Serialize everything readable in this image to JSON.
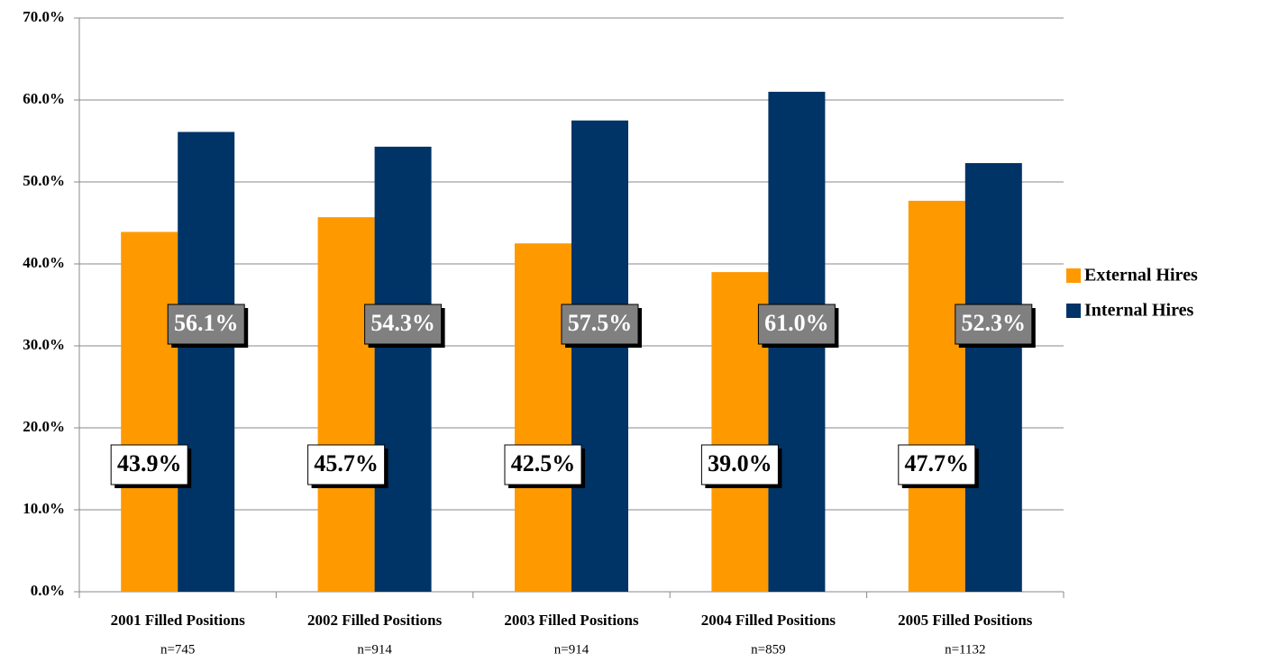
{
  "chart_data": {
    "type": "bar",
    "categories": [
      "2001 Filled Positions",
      "2002 Filled Positions",
      "2003 Filled Positions",
      "2004 Filled Positions",
      "2005 Filled Positions"
    ],
    "sample_sizes": [
      "n=745",
      "n=914",
      "n=914",
      "n=859",
      "n=1132"
    ],
    "series": [
      {
        "name": "External Hires",
        "color": "#FF9900",
        "values": [
          43.9,
          45.7,
          42.5,
          39.0,
          47.7
        ],
        "value_labels": [
          "43.9%",
          "45.7%",
          "42.5%",
          "39.0%",
          "47.7%"
        ]
      },
      {
        "name": "Internal Hires",
        "color": "#003366",
        "values": [
          56.1,
          54.3,
          57.5,
          61.0,
          52.3
        ],
        "value_labels": [
          "56.1%",
          "54.3%",
          "57.5%",
          "61.0%",
          "52.3%"
        ]
      }
    ],
    "ylim": [
      0,
      70
    ],
    "yticks": [
      {
        "value": 0,
        "label": "0.0%"
      },
      {
        "value": 10,
        "label": "10.0%"
      },
      {
        "value": 20,
        "label": "20.0%"
      },
      {
        "value": 30,
        "label": "30.0%"
      },
      {
        "value": 40,
        "label": "40.0%"
      },
      {
        "value": 50,
        "label": "50.0%"
      },
      {
        "value": 60,
        "label": "60.0%"
      },
      {
        "value": 70,
        "label": "70.0%"
      }
    ],
    "grid": true,
    "legend": "right"
  }
}
